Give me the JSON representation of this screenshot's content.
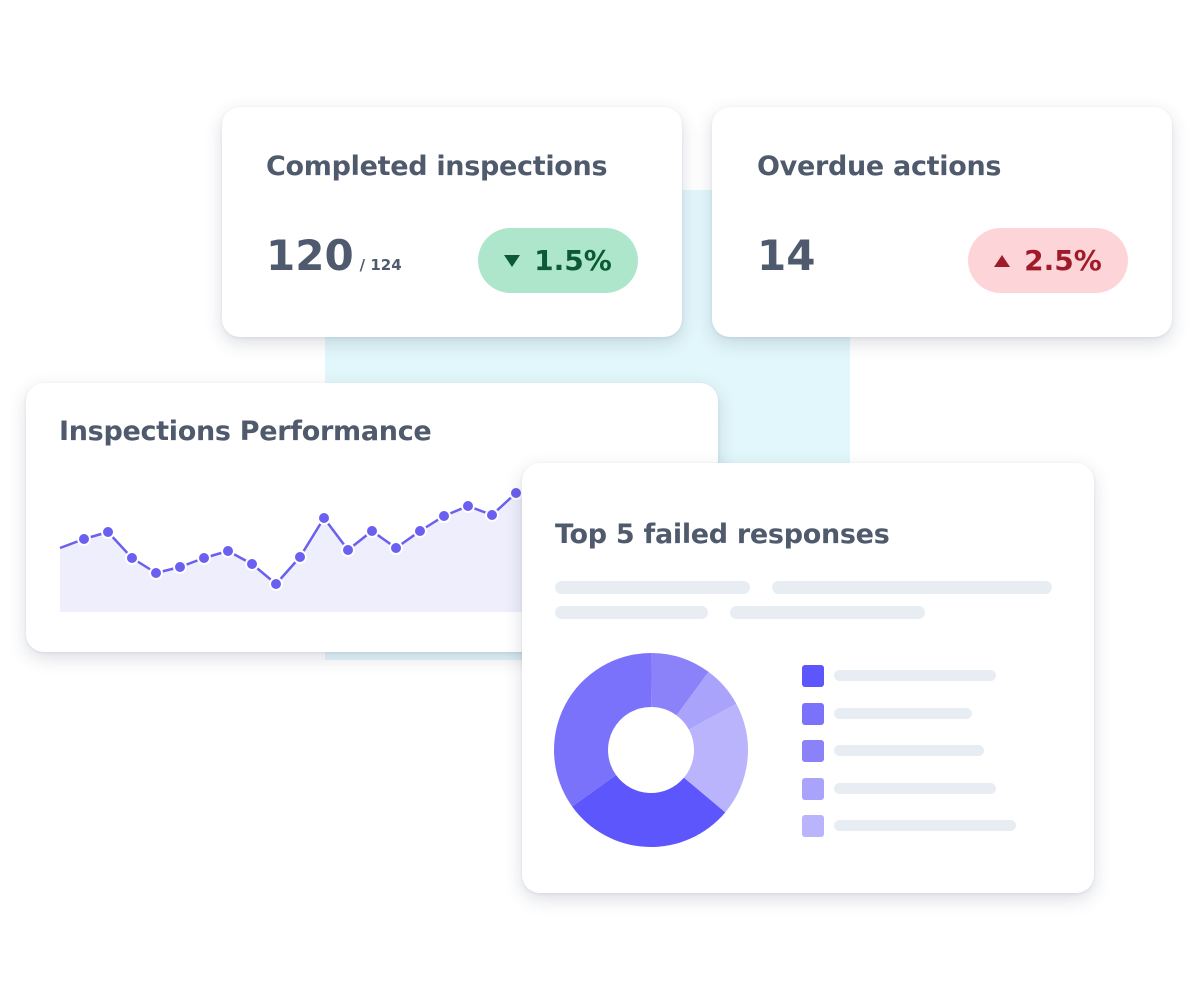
{
  "kpis": [
    {
      "title": "Completed inspections",
      "value": 120,
      "total": "/ 124",
      "change": "1.5%",
      "direction": "down"
    },
    {
      "title": "Overdue actions",
      "value": 14,
      "change": "2.5%",
      "direction": "up"
    }
  ],
  "performance": {
    "title": "Inspections Performance",
    "type": "line",
    "color": "#6a5ff0",
    "values": [
      64,
      73,
      80,
      54,
      39,
      45,
      54,
      61,
      48,
      28,
      55,
      94,
      62,
      81,
      64,
      81,
      96,
      106,
      97,
      119
    ],
    "ylim": [
      0,
      132
    ]
  },
  "failed_responses": {
    "title": "Top 5 failed responses",
    "type": "pie",
    "values": [
      29,
      35,
      10,
      7,
      19
    ],
    "colors": [
      "#5e56fd",
      "#7a72fb",
      "#8b82f9",
      "#a9a3fb",
      "#b9b4fc"
    ]
  }
}
